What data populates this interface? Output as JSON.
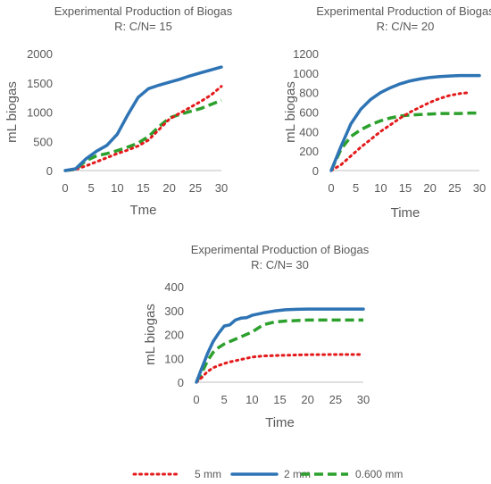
{
  "legend": [
    {
      "name": "5 mm",
      "color": "#e31a1c",
      "dash": "dotted"
    },
    {
      "name": "2 mm",
      "color": "#2e74b5",
      "dash": "solid"
    },
    {
      "name": "0.600 mm",
      "color": "#2ca02c",
      "dash": "dashed"
    }
  ],
  "chart_data": [
    {
      "type": "line",
      "title": "Experimental Production of Biogas",
      "subtitle": "R: C/N= 15",
      "xlabel": "Tme",
      "ylabel": "mL biogas",
      "xlim": [
        0,
        30
      ],
      "ylim": [
        0,
        2000
      ],
      "xticks": [
        0,
        5,
        10,
        15,
        20,
        25,
        30
      ],
      "yticks": [
        0,
        500,
        1000,
        1500,
        2000
      ],
      "grid": false,
      "series": [
        {
          "name": "5 mm",
          "color": "#e31a1c",
          "dash": "dotted",
          "x": [
            0,
            2,
            4,
            6,
            8,
            10,
            12,
            14,
            16,
            18,
            20,
            22,
            24,
            26,
            28,
            30
          ],
          "y": [
            0,
            20,
            80,
            150,
            220,
            290,
            350,
            420,
            520,
            700,
            880,
            980,
            1080,
            1180,
            1290,
            1440
          ]
        },
        {
          "name": "2 mm",
          "color": "#2e74b5",
          "dash": "solid",
          "x": [
            0,
            2,
            4,
            6,
            8,
            10,
            12,
            14,
            16,
            18,
            20,
            22,
            24,
            26,
            28,
            30
          ],
          "y": [
            0,
            30,
            200,
            330,
            430,
            620,
            950,
            1250,
            1400,
            1460,
            1510,
            1560,
            1620,
            1670,
            1720,
            1770
          ]
        },
        {
          "name": "0.600 mm",
          "color": "#2ca02c",
          "dash": "dashed",
          "x": [
            0,
            2,
            4,
            6,
            8,
            10,
            12,
            14,
            16,
            18,
            20,
            22,
            24,
            26,
            28,
            30
          ],
          "y": [
            0,
            20,
            170,
            250,
            290,
            340,
            400,
            470,
            580,
            750,
            900,
            960,
            1010,
            1060,
            1130,
            1200
          ]
        }
      ]
    },
    {
      "type": "line",
      "title": "Experimental Production of Biogas",
      "subtitle": "R: C/N= 20",
      "xlabel": "Time",
      "ylabel": "mL biogas",
      "xlim": [
        0,
        30
      ],
      "ylim": [
        0,
        1200
      ],
      "xticks": [
        0,
        5,
        10,
        15,
        20,
        25,
        30
      ],
      "yticks": [
        0,
        200,
        400,
        600,
        800,
        1000,
        1200
      ],
      "grid": false,
      "series": [
        {
          "name": "5 mm",
          "color": "#e31a1c",
          "dash": "dotted",
          "x": [
            0,
            2,
            4,
            6,
            8,
            10,
            12,
            14,
            16,
            18,
            20,
            22,
            24,
            26,
            28
          ],
          "y": [
            0,
            60,
            150,
            240,
            320,
            400,
            470,
            540,
            600,
            650,
            700,
            740,
            770,
            790,
            800
          ]
        },
        {
          "name": "2 mm",
          "color": "#2e74b5",
          "dash": "solid",
          "x": [
            0,
            2,
            4,
            6,
            8,
            10,
            12,
            14,
            16,
            18,
            20,
            22,
            24,
            26,
            28,
            30
          ],
          "y": [
            0,
            250,
            480,
            630,
            730,
            800,
            850,
            890,
            920,
            940,
            955,
            965,
            970,
            975,
            975,
            975
          ]
        },
        {
          "name": "0.600 mm",
          "color": "#2ca02c",
          "dash": "dashed",
          "x": [
            0,
            2,
            4,
            6,
            8,
            10,
            12,
            14,
            16,
            18,
            20,
            22,
            24,
            26,
            28,
            30
          ],
          "y": [
            0,
            220,
            350,
            420,
            470,
            510,
            540,
            560,
            570,
            575,
            580,
            585,
            585,
            585,
            590,
            590
          ]
        }
      ]
    },
    {
      "type": "line",
      "title": "Experimental Production of Biogas",
      "subtitle": "R: C/N= 30",
      "xlabel": "Time",
      "ylabel": "mL biogas",
      "xlim": [
        0,
        30
      ],
      "ylim": [
        0,
        400
      ],
      "xticks": [
        0,
        5,
        10,
        15,
        20,
        25,
        30
      ],
      "yticks": [
        0,
        100,
        200,
        300,
        400
      ],
      "grid": false,
      "series": [
        {
          "name": "5 mm",
          "color": "#e31a1c",
          "dash": "dotted",
          "x": [
            0,
            1,
            2,
            3,
            4,
            5,
            6,
            8,
            10,
            12,
            15,
            20,
            25,
            30
          ],
          "y": [
            0,
            20,
            45,
            60,
            70,
            78,
            85,
            95,
            105,
            110,
            112,
            115,
            116,
            116
          ]
        },
        {
          "name": "2 mm",
          "color": "#2e74b5",
          "dash": "solid",
          "x": [
            0,
            1,
            2,
            3,
            4,
            5,
            6,
            7,
            8,
            9,
            10,
            12,
            14,
            16,
            18,
            20,
            25,
            30
          ],
          "y": [
            0,
            60,
            120,
            170,
            205,
            235,
            240,
            260,
            268,
            270,
            280,
            290,
            298,
            303,
            305,
            306,
            306,
            306
          ]
        },
        {
          "name": "0.600 mm",
          "color": "#2ca02c",
          "dash": "dashed",
          "x": [
            0,
            1,
            2,
            3,
            4,
            5,
            6,
            8,
            10,
            12,
            14,
            16,
            18,
            20,
            25,
            30
          ],
          "y": [
            0,
            40,
            90,
            125,
            145,
            160,
            170,
            190,
            210,
            240,
            252,
            256,
            258,
            260,
            260,
            260
          ]
        }
      ]
    }
  ]
}
